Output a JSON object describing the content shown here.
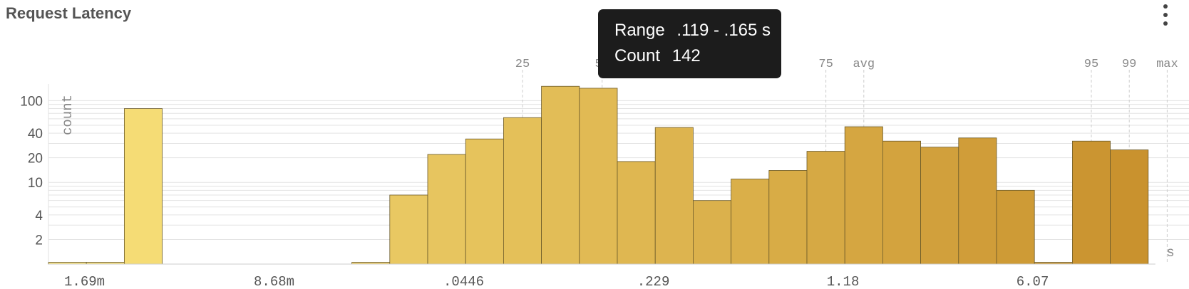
{
  "header": {
    "title": "Request Latency",
    "menu_icon": "more-vert-icon"
  },
  "tooltip": {
    "range_label": "Range",
    "range_value": ".119 - .165 s",
    "count_label": "Count",
    "count_value": "142"
  },
  "chart_data": {
    "type": "bar",
    "title": "Request Latency",
    "ylabel": "count",
    "xunit": "s",
    "yscale": "log",
    "ylim": [
      1,
      160
    ],
    "ytick_labels": [
      100,
      40,
      20,
      10,
      4,
      2
    ],
    "xtick_labels": [
      "1.69m",
      "8.68m",
      ".0446",
      ".229",
      "1.18",
      "6.07"
    ],
    "values": [
      1,
      1,
      80,
      0,
      0,
      0,
      0,
      0,
      1,
      7,
      22,
      34,
      62,
      150,
      142,
      18,
      47,
      6,
      11,
      14,
      24,
      48,
      32,
      27,
      35,
      8,
      1,
      32,
      25
    ],
    "colors": {
      "start": "#f8e27a",
      "end": "#c9922e",
      "tooltip_bg": "#1c1c1c"
    },
    "markers": [
      {
        "label": "25",
        "bin": 12.5
      },
      {
        "label": "50",
        "bin": 14.6
      },
      {
        "label": "75",
        "bin": 20.5
      },
      {
        "label": "avg",
        "bin": 21.5
      },
      {
        "label": "95",
        "bin": 27.5
      },
      {
        "label": "99",
        "bin": 28.5
      },
      {
        "label": "max",
        "bin": 29.5
      }
    ]
  }
}
